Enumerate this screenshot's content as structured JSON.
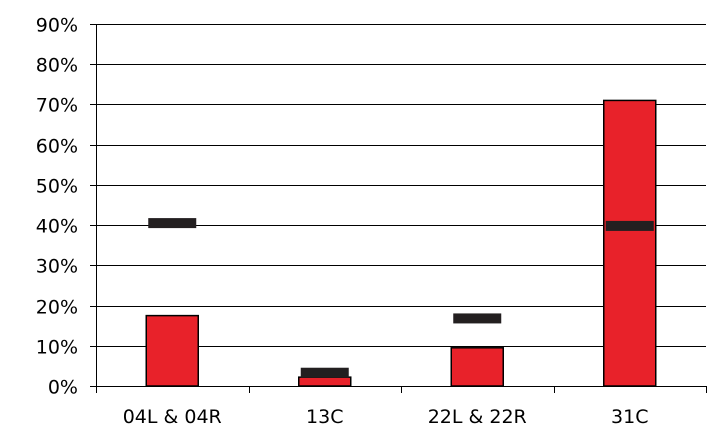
{
  "chart_data": {
    "type": "bar",
    "categories": [
      "04L & 04R",
      "13C",
      "22L & 22R",
      "31C"
    ],
    "series": [
      {
        "values": [
          17.5,
          2.2,
          9.5,
          71.0
        ],
        "color": "#e8222a",
        "style": "bar"
      },
      {
        "values": [
          40.5,
          3.3,
          16.8,
          39.8
        ],
        "color": "#231f20",
        "style": "marker"
      }
    ],
    "ylim": [
      0,
      90
    ],
    "yticks": [
      0,
      10,
      20,
      30,
      40,
      50,
      60,
      70,
      80,
      90
    ],
    "ytick_labels": [
      "0%",
      "10%",
      "20%",
      "30%",
      "40%",
      "50%",
      "60%",
      "70%",
      "80%",
      "90%"
    ],
    "grid": true,
    "xlabel": "",
    "ylabel": "",
    "title": ""
  }
}
